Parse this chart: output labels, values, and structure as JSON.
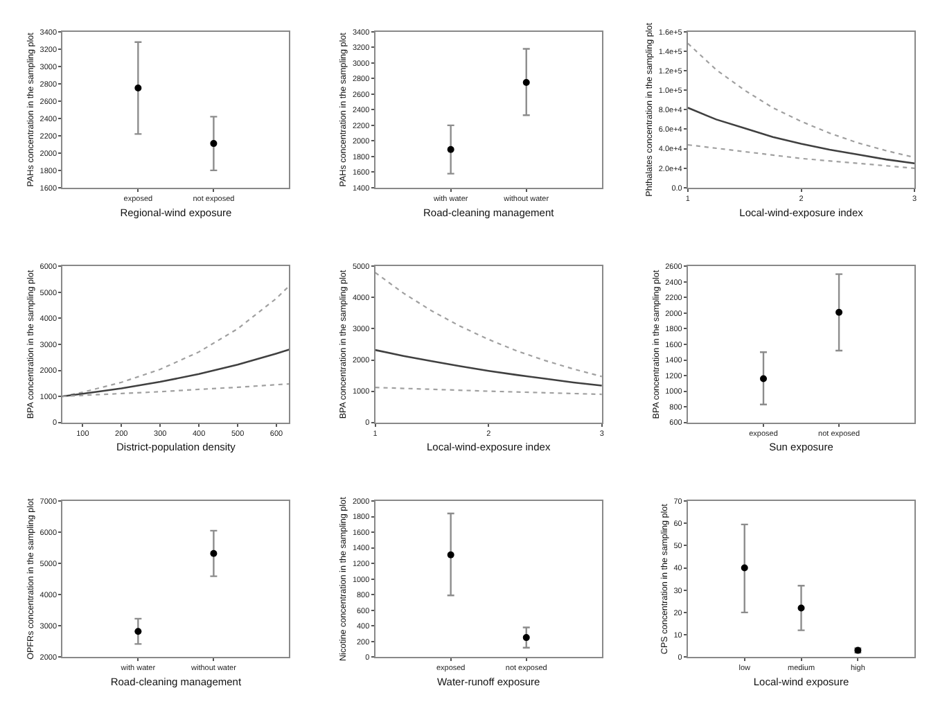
{
  "chart_data": [
    {
      "type": "scatter",
      "xlabel": "Regional-wind exposure",
      "ylabel": "PAHs concentration in the sampling plot",
      "categories": [
        "exposed",
        "not exposed"
      ],
      "marker": "circle",
      "ylim": [
        1600,
        3400
      ],
      "yticks": [
        1600,
        1800,
        2000,
        2200,
        2400,
        2600,
        2800,
        3000,
        3200,
        3400
      ],
      "series": [
        {
          "color": "#000000",
          "values": [
            2750,
            2110
          ],
          "errors": [
            [
              2220,
              3280
            ],
            [
              1800,
              2420
            ]
          ]
        }
      ]
    },
    {
      "type": "scatter",
      "xlabel": "Road-cleaning management",
      "ylabel": "PAHs concentration in the sampling plot",
      "categories": [
        "with water",
        "without water"
      ],
      "marker": "circle",
      "ylim": [
        1400,
        3400
      ],
      "yticks": [
        1400,
        1600,
        1800,
        2000,
        2200,
        2400,
        2600,
        2800,
        3000,
        3200,
        3400
      ],
      "series": [
        {
          "color": "#000000",
          "values": [
            1890,
            2750
          ],
          "errors": [
            [
              1580,
              2200
            ],
            [
              2330,
              3180
            ]
          ]
        }
      ]
    },
    {
      "type": "line",
      "xlabel": "Local-wind-exposure index",
      "ylabel": "Phthalates concentration in the sampling plot",
      "xlim": [
        1,
        3
      ],
      "xticks": [
        1,
        2,
        3
      ],
      "ylim": [
        0,
        160000
      ],
      "yticks": [
        {
          "value": 0,
          "label": "0.0"
        },
        {
          "value": 20000,
          "label": "2.0e+4"
        },
        {
          "value": 40000,
          "label": "4.0e+4"
        },
        {
          "value": 60000,
          "label": "6.0e+4"
        },
        {
          "value": 80000,
          "label": "8.0e+4"
        },
        {
          "value": 100000,
          "label": "1.0e+5"
        },
        {
          "value": 120000,
          "label": "1.2e+5"
        },
        {
          "value": 140000,
          "label": "1.4e+5"
        },
        {
          "value": 160000,
          "label": "1.6e+5"
        }
      ],
      "series": [
        {
          "color": "#a0a0a0",
          "line_style": "dotted",
          "x": [
            1,
            1.25,
            1.5,
            1.75,
            2,
            2.25,
            2.5,
            2.75,
            3
          ],
          "values": [
            148000,
            121000,
            100000,
            82000,
            68000,
            56000,
            46000,
            38000,
            31000
          ]
        },
        {
          "color": "#404040",
          "line_style": "solid",
          "x": [
            1,
            1.25,
            1.5,
            1.75,
            2,
            2.25,
            2.5,
            2.75,
            3
          ],
          "values": [
            82000,
            70000,
            61000,
            52000,
            45000,
            39000,
            34000,
            29000,
            25000
          ]
        },
        {
          "color": "#a0a0a0",
          "line_style": "dotted",
          "x": [
            1,
            1.5,
            2,
            2.5,
            3
          ],
          "values": [
            44000,
            37000,
            30000,
            25000,
            20000
          ]
        }
      ]
    },
    {
      "type": "line",
      "xlabel": "District-population density",
      "ylabel": "BPA concentration in the sampling plot",
      "xlim": [
        48,
        633
      ],
      "xticks": [
        100,
        200,
        300,
        400,
        500,
        600
      ],
      "ylim": [
        0,
        6000
      ],
      "yticks": [
        0,
        1000,
        2000,
        3000,
        4000,
        5000,
        6000
      ],
      "series": [
        {
          "color": "#a0a0a0",
          "line_style": "dotted",
          "x": [
            48,
            100,
            200,
            300,
            400,
            500,
            600,
            633
          ],
          "values": [
            1000,
            1160,
            1540,
            2040,
            2710,
            3600,
            4770,
            5250
          ]
        },
        {
          "color": "#404040",
          "line_style": "solid",
          "x": [
            48,
            100,
            200,
            300,
            400,
            500,
            600,
            633
          ],
          "values": [
            1000,
            1100,
            1310,
            1560,
            1860,
            2220,
            2650,
            2800
          ]
        },
        {
          "color": "#a0a0a0",
          "line_style": "dotted",
          "x": [
            48,
            100,
            200,
            300,
            400,
            500,
            600,
            633
          ],
          "values": [
            1000,
            1040,
            1110,
            1180,
            1270,
            1350,
            1450,
            1480
          ]
        }
      ]
    },
    {
      "type": "line",
      "xlabel": "Local-wind-exposure index",
      "ylabel": "BPA concentration in the sampling plot",
      "xlim": [
        1,
        3
      ],
      "xticks": [
        1,
        2,
        3
      ],
      "ylim": [
        0,
        5000
      ],
      "yticks": [
        0,
        1000,
        2000,
        3000,
        4000,
        5000
      ],
      "series": [
        {
          "color": "#a0a0a0",
          "line_style": "dotted",
          "x": [
            1,
            1.25,
            1.5,
            1.75,
            2,
            2.25,
            2.5,
            2.75,
            3
          ],
          "values": [
            4800,
            4140,
            3570,
            3080,
            2660,
            2290,
            1980,
            1710,
            1470
          ]
        },
        {
          "color": "#404040",
          "line_style": "solid",
          "x": [
            1,
            1.25,
            1.5,
            1.75,
            2,
            2.25,
            2.5,
            2.75,
            3
          ],
          "values": [
            2320,
            2130,
            1960,
            1800,
            1650,
            1520,
            1400,
            1280,
            1180
          ]
        },
        {
          "color": "#a0a0a0",
          "line_style": "dotted",
          "x": [
            1,
            1.5,
            2,
            2.5,
            3
          ],
          "values": [
            1120,
            1060,
            1000,
            950,
            900
          ]
        }
      ]
    },
    {
      "type": "scatter",
      "xlabel": "Sun exposure",
      "ylabel": "BPA concentration in the sampling plot",
      "categories": [
        "exposed",
        "not exposed"
      ],
      "marker": "circle",
      "ylim": [
        600,
        2600
      ],
      "yticks": [
        600,
        800,
        1000,
        1200,
        1400,
        1600,
        1800,
        2000,
        2200,
        2400,
        2600
      ],
      "series": [
        {
          "color": "#000000",
          "values": [
            1160,
            2010
          ],
          "errors": [
            [
              830,
              1500
            ],
            [
              1520,
              2500
            ]
          ]
        }
      ]
    },
    {
      "type": "scatter",
      "xlabel": "Road-cleaning management",
      "ylabel": "OPFRs concentration in the sampling plot",
      "categories": [
        "with water",
        "without water"
      ],
      "marker": "circle",
      "ylim": [
        2000,
        7000
      ],
      "yticks": [
        2000,
        3000,
        4000,
        5000,
        6000,
        7000
      ],
      "series": [
        {
          "color": "#000000",
          "values": [
            2820,
            5320
          ],
          "errors": [
            [
              2420,
              3230
            ],
            [
              4590,
              6050
            ]
          ]
        }
      ]
    },
    {
      "type": "scatter",
      "xlabel": "Water-runoff exposure",
      "ylabel": "Nicotine concentration in the sampling plot",
      "categories": [
        "exposed",
        "not exposed"
      ],
      "marker": "circle",
      "ylim": [
        0,
        2000
      ],
      "yticks": [
        0,
        200,
        400,
        600,
        800,
        1000,
        1200,
        1400,
        1600,
        1800,
        2000
      ],
      "series": [
        {
          "color": "#000000",
          "values": [
            1310,
            250
          ],
          "errors": [
            [
              790,
              1840
            ],
            [
              120,
              380
            ]
          ]
        }
      ]
    },
    {
      "type": "scatter",
      "xlabel": "Local-wind exposure",
      "ylabel": "CPS concentration in the sampling plot",
      "categories": [
        "low",
        "medium",
        "high"
      ],
      "marker": "circle",
      "ylim": [
        0,
        70
      ],
      "yticks": [
        0,
        10,
        20,
        30,
        40,
        50,
        60,
        70
      ],
      "series": [
        {
          "color": "#000000",
          "values": [
            40,
            22,
            3
          ],
          "errors": [
            [
              20,
              59.5
            ],
            [
              12,
              32
            ],
            [
              2,
              4
            ]
          ]
        }
      ]
    }
  ]
}
